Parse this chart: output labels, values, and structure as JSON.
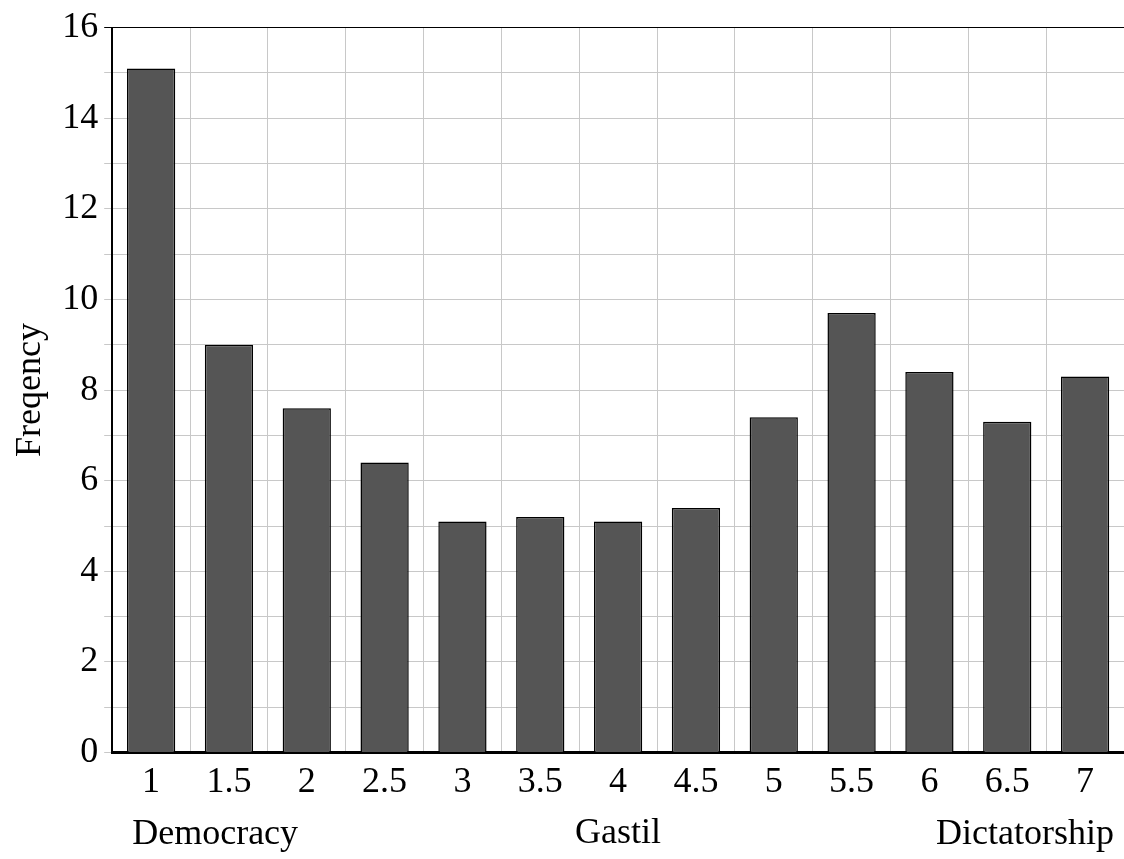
{
  "chart_data": {
    "type": "bar",
    "xlabel": "Gastil",
    "ylabel": "Freqency",
    "categories": [
      "1",
      "1.5",
      "2",
      "2.5",
      "3",
      "3.5",
      "4",
      "4.5",
      "5",
      "5.5",
      "6",
      "6.5",
      "7"
    ],
    "values": [
      15.1,
      9.0,
      7.6,
      6.4,
      5.1,
      5.2,
      5.1,
      5.4,
      7.4,
      9.7,
      8.4,
      7.3,
      8.3
    ],
    "color": "#555555",
    "ylim": [
      0,
      16
    ],
    "yticks": [
      0,
      {
        "value": 1,
        "label": null
      },
      2,
      {
        "value": 3,
        "label": null
      },
      4,
      {
        "value": 5,
        "label": null
      },
      6,
      {
        "value": 7,
        "label": null
      },
      8,
      {
        "value": 9,
        "label": null
      },
      10,
      {
        "value": 11,
        "label": null
      },
      12,
      {
        "value": 13,
        "label": null
      },
      14,
      {
        "value": 15,
        "label": null
      },
      16
    ],
    "grid": true,
    "legend": false,
    "annotations": [
      "Democracy",
      "Dictatorship"
    ]
  }
}
